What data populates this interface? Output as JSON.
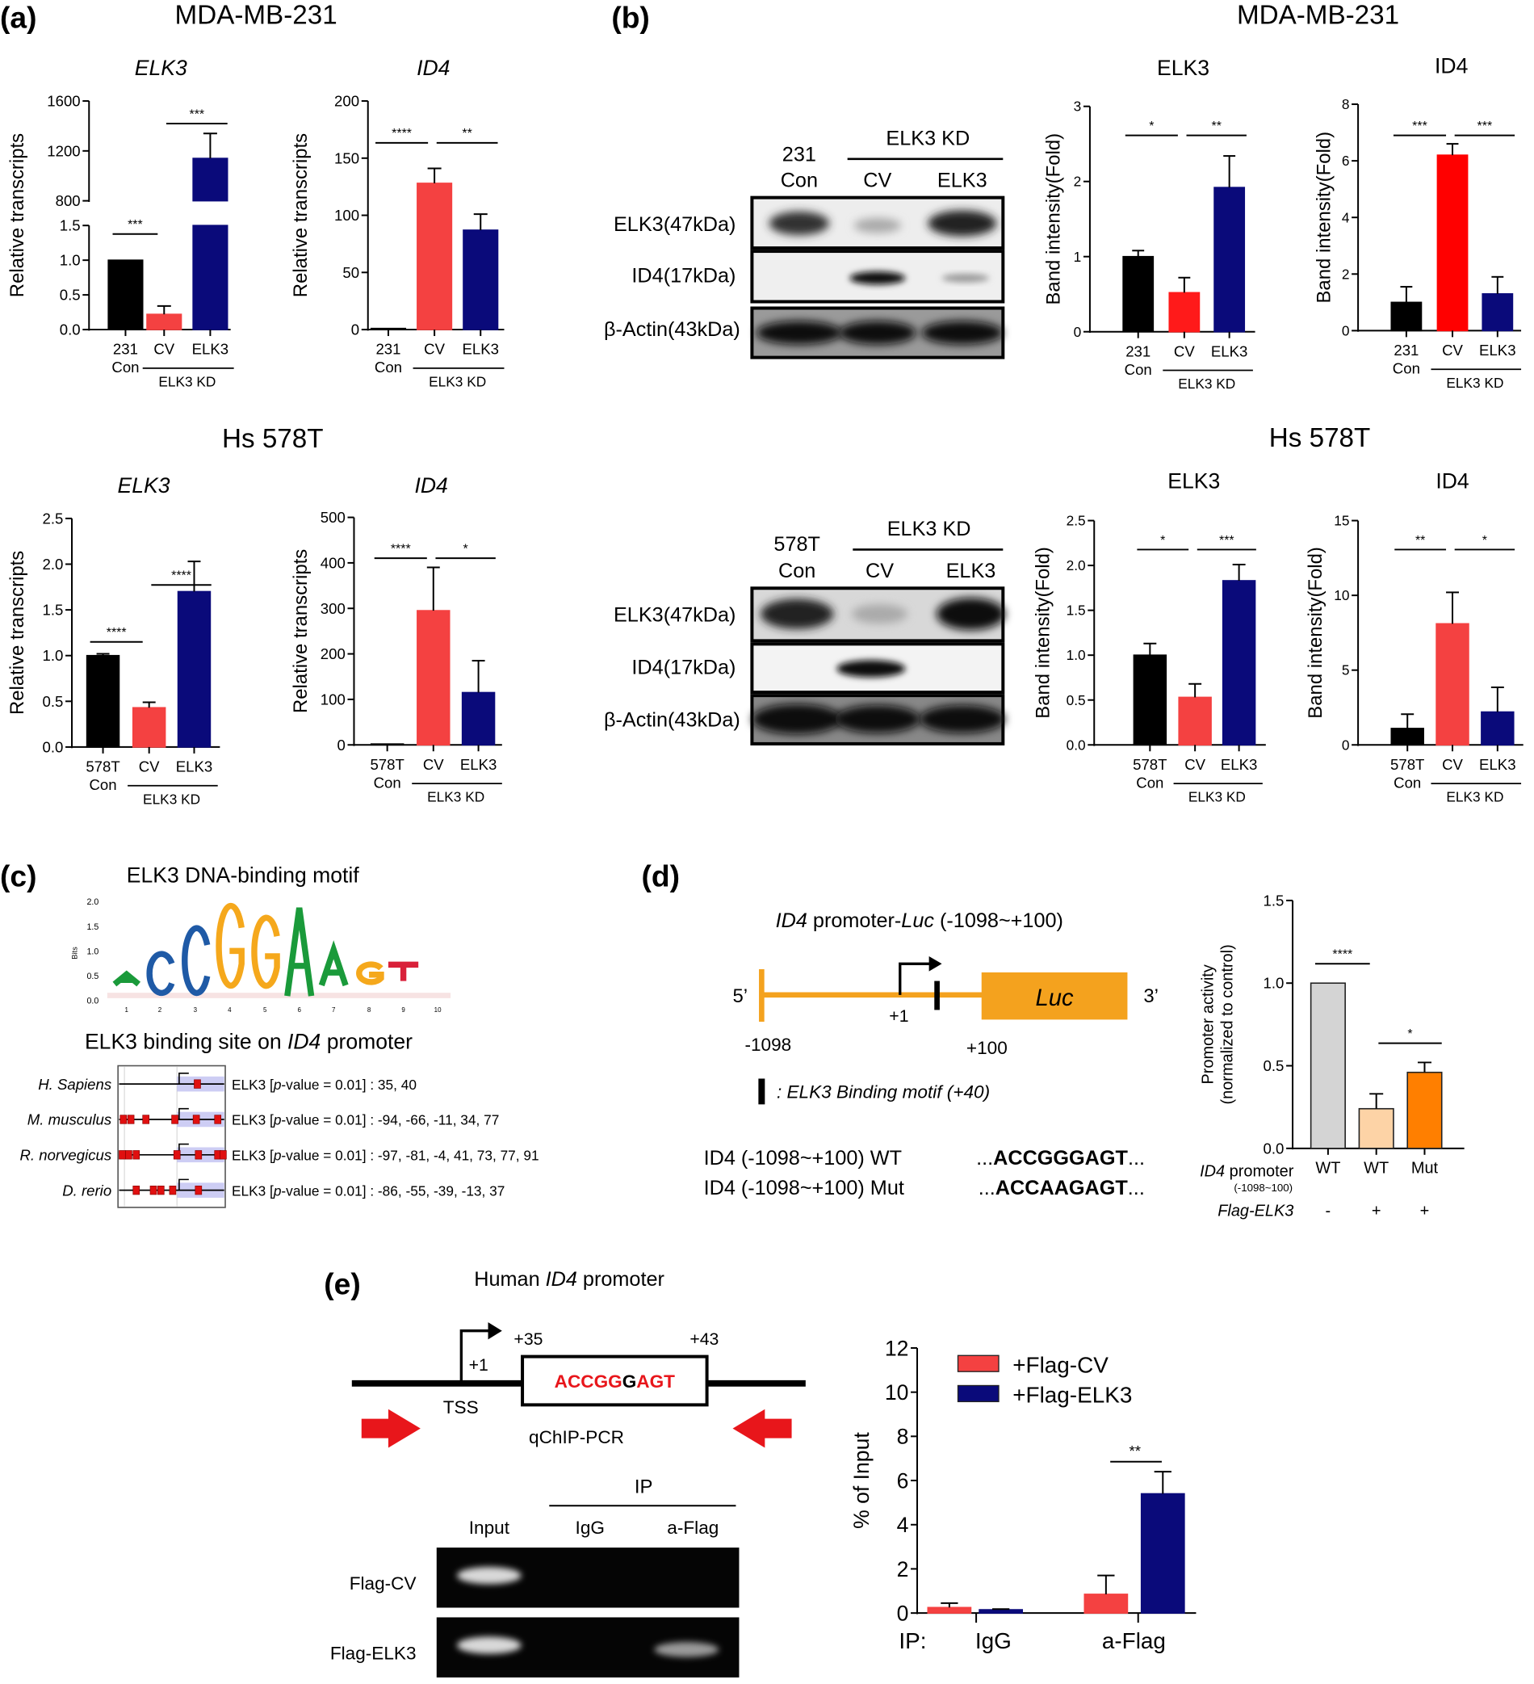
{
  "panel_labels": {
    "a": "(a)",
    "b": "(b)",
    "c": "(c)",
    "d": "(d)",
    "e": "(e)"
  },
  "headings": {
    "mda_a": "MDA-MB-231",
    "mda_b": "MDA-MB-231",
    "hs_a": "Hs 578T",
    "hs_b": "Hs 578T"
  },
  "blots": [
    {
      "con_line1": "231",
      "con_line2": "Con",
      "kd_label": "ELK3 KD",
      "lane2": "CV",
      "lane3": "ELK3",
      "rows": [
        "ELK3(47kDa)",
        "ID4(17kDa)",
        "β-Actin(43kDa)"
      ]
    },
    {
      "con_line1": "578T",
      "con_line2": "Con",
      "kd_label": "ELK3 KD",
      "lane2": "CV",
      "lane3": "ELK3",
      "rows": [
        "ELK3(47kDa)",
        "ID4(17kDa)",
        "β-Actin(43kDa)"
      ]
    }
  ],
  "motif": {
    "title": "ELK3 DNA-binding motif",
    "ylabel": "Bits",
    "yticks": [
      "2.0",
      "1.5",
      "1.0",
      "0.5",
      "0.0"
    ],
    "positions": [
      "1",
      "2",
      "3",
      "4",
      "5",
      "6",
      "7",
      "8",
      "9",
      "10"
    ],
    "letters": [
      "A",
      "C",
      "C",
      "G",
      "G",
      "A",
      "A",
      "G",
      "T",
      ""
    ],
    "letter_colors": {
      "A": "#1a9a3a",
      "C": "#1f5aa6",
      "G": "#f5a81c",
      "T": "#d9213a"
    },
    "site_title_pre": "ELK3 binding site on ",
    "site_title_gene": "ID4",
    "site_title_post": " promoter",
    "site_prefix": "ELK3 [",
    "site_p": "p",
    "site_mid": "-value = 0.01] : ",
    "species": [
      {
        "name": "H. Sapiens",
        "sites": "35, 40"
      },
      {
        "name": "M. musculus",
        "sites": "-94, -66, -11, 34, 77"
      },
      {
        "name": "R. norvegicus",
        "sites": "-97, -81, -4, 41, 73, 77, 91"
      },
      {
        "name": "D. rerio",
        "sites": "-86, -55, -39, -13, 37"
      }
    ]
  },
  "construct": {
    "title_gene": "ID4",
    "title_mid": " promoter-",
    "title_luc": "Luc",
    "title_range": " (-1098~+100)",
    "five": "5’",
    "three": "3’",
    "luc": "Luc",
    "plus1": "+1",
    "start": "-1098",
    "end": "+100",
    "legend": ": ELK3 Binding motif (+40)",
    "wt_label": "ID4 (-1098~+100) WT",
    "wt_pre": "...",
    "wt_seq": "ACCGGGAGT",
    "wt_post": "...",
    "mut_label": "ID4 (-1098~+100) Mut",
    "mut_pre": "...",
    "mut_seq": "ACCAAGAGT",
    "mut_post": "...",
    "row_promoter_gene": "ID4",
    "row_promoter": " promoter",
    "row_range": "(-1098~100)",
    "row_flag": "Flag-ELK3",
    "flag_values": [
      "-",
      "+",
      "+"
    ],
    "line_color": "#f4a21e"
  },
  "chip": {
    "title_pre": "Human ",
    "title_gene": "ID4",
    "title_post": " promoter",
    "plus35": "+35",
    "plus43": "+43",
    "plus1": "+1",
    "tss": "TSS",
    "qchip": "qChIP-PCR",
    "seq_a": "ACCGG",
    "seq_b": "G",
    "seq_c": "AGT",
    "ip": "IP",
    "lanes": [
      "Input",
      "IgG",
      "a-Flag"
    ],
    "rows": [
      "Flag-CV",
      "Flag-ELK3"
    ]
  },
  "chart_data": [
    {
      "type": "bar",
      "title": "ELK3",
      "ylabel": "Relative transcripts",
      "categories": [
        "231\nCon",
        "CV",
        "ELK3"
      ],
      "group_label": "ELK3 KD",
      "values": [
        1.0,
        0.22,
        1140
      ],
      "errors": [
        0,
        0.12,
        200
      ],
      "colors": [
        "#000000",
        "#f44141",
        "#0a0a7a"
      ],
      "ylim": [
        0,
        1600
      ],
      "axis_break": [
        1.5,
        800
      ],
      "yticks": [
        "0.0",
        "0.5",
        "1.0",
        "1.5",
        "800",
        "1200",
        "1600"
      ],
      "significance": [
        {
          "from": 0,
          "to": 1,
          "label": "***"
        },
        {
          "from": 1,
          "to": 2,
          "label": "***"
        }
      ]
    },
    {
      "type": "bar",
      "title": "ID4",
      "ylabel": "Relative transcripts",
      "categories": [
        "231\nCon",
        "CV",
        "ELK3"
      ],
      "group_label": "ELK3 KD",
      "values": [
        1,
        128,
        87
      ],
      "errors": [
        0,
        13,
        14
      ],
      "colors": [
        "#000000",
        "#f44141",
        "#0a0a7a"
      ],
      "ylim": [
        0,
        200
      ],
      "yticks": [
        "0",
        "50",
        "100",
        "150",
        "200"
      ],
      "significance": [
        {
          "from": 0,
          "to": 1,
          "label": "****"
        },
        {
          "from": 1,
          "to": 2,
          "label": "**"
        }
      ]
    },
    {
      "type": "bar",
      "title": "ELK3",
      "ylabel": "Band intensity(Fold)",
      "categories": [
        "231\nCon",
        "CV",
        "ELK3"
      ],
      "group_label": "ELK3 KD",
      "values": [
        1.0,
        0.52,
        1.92
      ],
      "errors": [
        0.08,
        0.2,
        0.42
      ],
      "colors": [
        "#000000",
        "#ff1a1a",
        "#0a0a7a"
      ],
      "ylim": [
        0,
        3
      ],
      "yticks": [
        "0",
        "1",
        "2",
        "3"
      ],
      "significance": [
        {
          "from": 0,
          "to": 1,
          "label": "*"
        },
        {
          "from": 1,
          "to": 2,
          "label": "**"
        }
      ]
    },
    {
      "type": "bar",
      "title": "ID4",
      "ylabel": "Band intensity(Fold)",
      "categories": [
        "231\nCon",
        "CV",
        "ELK3"
      ],
      "group_label": "ELK3 KD",
      "values": [
        1.0,
        6.2,
        1.3
      ],
      "errors": [
        0.55,
        0.4,
        0.6
      ],
      "colors": [
        "#000000",
        "#ff0000",
        "#0a0a7a"
      ],
      "ylim": [
        0,
        8
      ],
      "yticks": [
        "0",
        "2",
        "4",
        "6",
        "8"
      ],
      "significance": [
        {
          "from": 0,
          "to": 1,
          "label": "***"
        },
        {
          "from": 1,
          "to": 2,
          "label": "***"
        }
      ]
    },
    {
      "type": "bar",
      "title": "ELK3",
      "ylabel": "Relative transcripts",
      "categories": [
        "578T\nCon",
        "CV",
        "ELK3"
      ],
      "group_label": "ELK3 KD",
      "values": [
        1.0,
        0.43,
        1.7
      ],
      "errors": [
        0.02,
        0.06,
        0.33
      ],
      "colors": [
        "#000000",
        "#f44141",
        "#0a0a7a"
      ],
      "ylim": [
        0,
        2.5
      ],
      "yticks": [
        "0.0",
        "0.5",
        "1.0",
        "1.5",
        "2.0",
        "2.5"
      ],
      "significance": [
        {
          "from": 0,
          "to": 1,
          "label": "****"
        },
        {
          "from": 1,
          "to": 2,
          "label": "****"
        }
      ]
    },
    {
      "type": "bar",
      "title": "ID4",
      "ylabel": "Relative transcripts",
      "categories": [
        "578T\nCon",
        "CV",
        "ELK3"
      ],
      "group_label": "ELK3 KD",
      "values": [
        2,
        295,
        115
      ],
      "errors": [
        0,
        95,
        70
      ],
      "colors": [
        "#000000",
        "#f44141",
        "#0a0a7a"
      ],
      "ylim": [
        0,
        500
      ],
      "yticks": [
        "0",
        "100",
        "200",
        "300",
        "400",
        "500"
      ],
      "significance": [
        {
          "from": 0,
          "to": 1,
          "label": "****"
        },
        {
          "from": 1,
          "to": 2,
          "label": "*"
        }
      ]
    },
    {
      "type": "bar",
      "title": "ELK3",
      "ylabel": "Band intensity(Fold)",
      "categories": [
        "578T\nCon",
        "CV",
        "ELK3"
      ],
      "group_label": "ELK3 KD",
      "values": [
        1.0,
        0.53,
        1.83
      ],
      "errors": [
        0.13,
        0.15,
        0.18
      ],
      "colors": [
        "#000000",
        "#f44141",
        "#0a0a7a"
      ],
      "ylim": [
        0,
        2.5
      ],
      "yticks": [
        "0.0",
        "0.5",
        "1.0",
        "1.5",
        "2.0",
        "2.5"
      ],
      "significance": [
        {
          "from": 0,
          "to": 1,
          "label": "*"
        },
        {
          "from": 1,
          "to": 2,
          "label": "***"
        }
      ]
    },
    {
      "type": "bar",
      "title": "ID4",
      "ylabel": "Band intensity(Fold)",
      "categories": [
        "578T\nCon",
        "CV",
        "ELK3"
      ],
      "group_label": "ELK3 KD",
      "values": [
        1.1,
        8.1,
        2.2
      ],
      "errors": [
        0.95,
        2.1,
        1.65
      ],
      "colors": [
        "#000000",
        "#f44141",
        "#0a0a7a"
      ],
      "ylim": [
        0,
        15
      ],
      "yticks": [
        "0",
        "5",
        "10",
        "15"
      ],
      "significance": [
        {
          "from": 0,
          "to": 1,
          "label": "**"
        },
        {
          "from": 1,
          "to": 2,
          "label": "*"
        }
      ]
    },
    {
      "type": "bar",
      "title": "",
      "ylabel": "Promoter activity\n(normalized to control)",
      "categories": [
        "WT",
        "WT",
        "Mut"
      ],
      "group_label": "",
      "values": [
        1.0,
        0.24,
        0.46
      ],
      "errors": [
        0,
        0.09,
        0.06
      ],
      "colors": [
        "#d4d4d4",
        "#fdd3a6",
        "#ff7f00"
      ],
      "ylim": [
        0,
        1.5
      ],
      "yticks": [
        "0.0",
        "0.5",
        "1.0",
        "1.5"
      ],
      "significance": [
        {
          "from": 0,
          "to": 1,
          "label": "****"
        },
        {
          "from": 1,
          "to": 2,
          "label": "*"
        }
      ]
    },
    {
      "type": "grouped_bar",
      "title": "",
      "ylabel": "% of Input",
      "x_prefix": "IP:",
      "categories": [
        "IgG",
        "a-Flag"
      ],
      "series": [
        {
          "name": "+Flag-CV",
          "color": "#f44141",
          "values": [
            0.25,
            0.85
          ],
          "errors": [
            0.2,
            0.85
          ]
        },
        {
          "name": "+Flag-ELK3",
          "color": "#0a0a7a",
          "values": [
            0.15,
            5.4
          ],
          "errors": [
            0.03,
            1.0
          ]
        }
      ],
      "ylim": [
        0,
        12
      ],
      "yticks": [
        "0",
        "2",
        "4",
        "6",
        "8",
        "10",
        "12"
      ],
      "legend": "top-left",
      "significance": [
        {
          "category": 1,
          "label": "**"
        }
      ]
    }
  ]
}
